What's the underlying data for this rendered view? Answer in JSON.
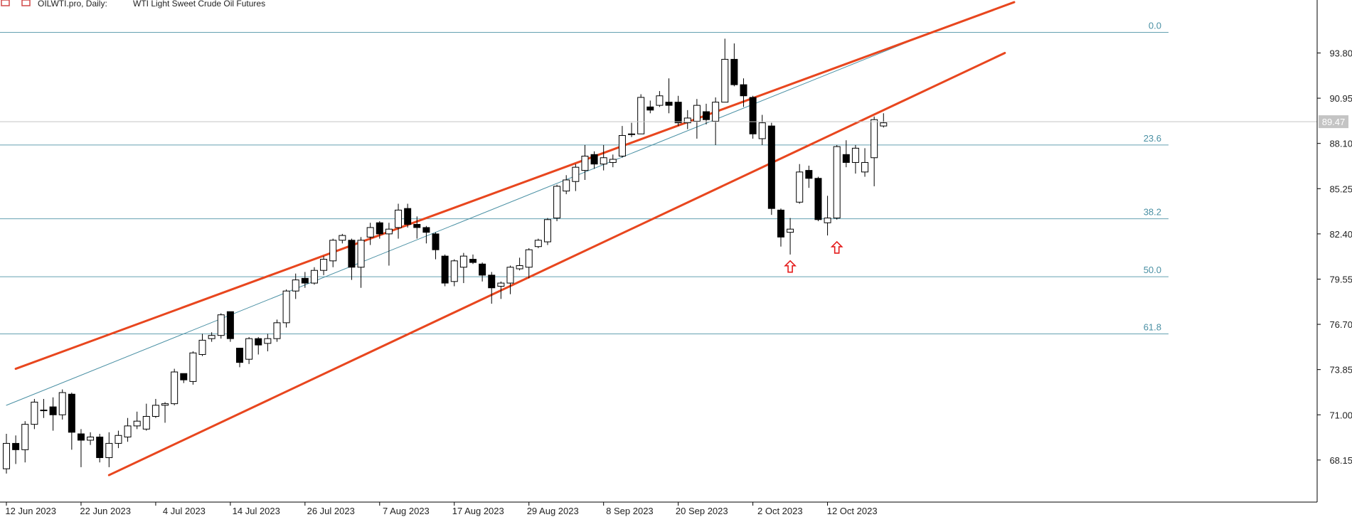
{
  "header": {
    "symbol": "OILWTI.pro, Daily:",
    "description": "WTI Light Sweet Crude Oil Futures"
  },
  "chart_data": {
    "type": "candlestick",
    "ylim": [
      65.5,
      96.6
    ],
    "y_ticks": [
      "93.80",
      "90.95",
      "88.10",
      "85.25",
      "82.40",
      "79.55",
      "76.70",
      "73.85",
      "71.00",
      "68.15"
    ],
    "current_price": "89.47",
    "x_labels": [
      {
        "bar": 0,
        "label": "12 Jun 2023"
      },
      {
        "bar": 8,
        "label": "22 Jun 2023"
      },
      {
        "bar": 16,
        "label": "4 Jul 2023"
      },
      {
        "bar": 24,
        "label": "14 Jul 2023"
      },
      {
        "bar": 32,
        "label": "26 Jul 2023"
      },
      {
        "bar": 40,
        "label": "7 Aug 2023"
      },
      {
        "bar": 48,
        "label": "17 Aug 2023"
      },
      {
        "bar": 56,
        "label": "29 Aug 2023"
      },
      {
        "bar": 64,
        "label": "8 Sep 2023"
      },
      {
        "bar": 72,
        "label": "20 Sep 2023"
      },
      {
        "bar": 80,
        "label": "2 Oct 2023"
      },
      {
        "bar": 88,
        "label": "12 Oct 2023"
      }
    ],
    "candles": [
      [
        67.6,
        69.2,
        67.3,
        69.8
      ],
      [
        69.2,
        68.8,
        67.9,
        69.7
      ],
      [
        68.8,
        70.4,
        68.0,
        70.6
      ],
      [
        70.4,
        71.8,
        70.1,
        72.0
      ],
      [
        71.3,
        71.3,
        70.8,
        72.0
      ],
      [
        71.5,
        71.0,
        70.0,
        72.1
      ],
      [
        71.0,
        72.4,
        70.7,
        72.6
      ],
      [
        72.3,
        69.9,
        68.8,
        72.4
      ],
      [
        69.8,
        69.4,
        67.7,
        70.1
      ],
      [
        69.4,
        69.6,
        69.1,
        69.9
      ],
      [
        69.6,
        68.3,
        68.0,
        69.8
      ],
      [
        68.3,
        69.2,
        67.7,
        69.9
      ],
      [
        69.2,
        69.7,
        68.9,
        70.0
      ],
      [
        69.6,
        70.3,
        69.3,
        70.8
      ],
      [
        70.3,
        70.6,
        70.1,
        71.2
      ],
      [
        70.1,
        70.9,
        70.0,
        71.7
      ],
      [
        70.9,
        71.6,
        70.8,
        72.0
      ],
      [
        71.6,
        71.7,
        70.5,
        71.8
      ],
      [
        71.7,
        73.7,
        71.6,
        73.9
      ],
      [
        73.6,
        73.2,
        73.0,
        73.6
      ],
      [
        73.1,
        74.9,
        72.9,
        75.0
      ],
      [
        74.8,
        75.7,
        74.7,
        76.1
      ],
      [
        75.8,
        76.0,
        75.6,
        76.2
      ],
      [
        76.0,
        77.3,
        75.8,
        77.4
      ],
      [
        77.5,
        75.8,
        75.6,
        77.5
      ],
      [
        75.2,
        74.3,
        74.0,
        75.2
      ],
      [
        74.5,
        75.8,
        74.2,
        75.9
      ],
      [
        75.8,
        75.4,
        74.8,
        75.9
      ],
      [
        75.5,
        75.8,
        75.0,
        76.1
      ],
      [
        75.8,
        76.8,
        75.6,
        77.0
      ],
      [
        76.8,
        78.8,
        76.5,
        78.9
      ],
      [
        78.8,
        79.5,
        78.3,
        79.9
      ],
      [
        79.6,
        79.3,
        79.0,
        80.0
      ],
      [
        79.3,
        80.1,
        79.2,
        80.3
      ],
      [
        80.1,
        80.8,
        79.8,
        81.0
      ],
      [
        80.7,
        82.0,
        80.3,
        82.1
      ],
      [
        82.0,
        82.3,
        81.8,
        82.4
      ],
      [
        82.0,
        80.3,
        79.5,
        82.1
      ],
      [
        80.3,
        82.0,
        79.0,
        82.2
      ],
      [
        82.2,
        82.8,
        81.7,
        83.1
      ],
      [
        83.1,
        82.4,
        82.1,
        83.2
      ],
      [
        82.4,
        82.7,
        80.4,
        83.1
      ],
      [
        82.8,
        83.9,
        82.1,
        84.3
      ],
      [
        84.0,
        83.0,
        82.8,
        84.3
      ],
      [
        83.0,
        82.8,
        82.1,
        83.5
      ],
      [
        82.8,
        82.5,
        81.8,
        82.9
      ],
      [
        82.4,
        81.4,
        80.8,
        82.5
      ],
      [
        81.0,
        79.3,
        79.1,
        81.1
      ],
      [
        79.4,
        80.7,
        79.1,
        80.8
      ],
      [
        80.3,
        81.0,
        79.3,
        81.2
      ],
      [
        80.8,
        80.6,
        80.5,
        81.1
      ],
      [
        80.5,
        79.8,
        79.4,
        80.6
      ],
      [
        79.8,
        79.0,
        78.0,
        80.0
      ],
      [
        79.1,
        79.3,
        78.3,
        79.4
      ],
      [
        79.3,
        80.3,
        78.6,
        80.4
      ],
      [
        80.2,
        80.4,
        80.1,
        80.9
      ],
      [
        80.3,
        81.4,
        79.6,
        81.5
      ],
      [
        81.6,
        82.0,
        81.5,
        82.1
      ],
      [
        81.9,
        83.3,
        81.7,
        83.4
      ],
      [
        83.4,
        85.4,
        83.2,
        85.5
      ],
      [
        85.1,
        85.8,
        84.9,
        86.1
      ],
      [
        85.7,
        86.6,
        85.1,
        86.8
      ],
      [
        86.4,
        87.3,
        85.8,
        88.0
      ],
      [
        87.4,
        86.8,
        86.5,
        87.6
      ],
      [
        86.8,
        87.2,
        86.4,
        88.0
      ],
      [
        86.9,
        87.1,
        86.6,
        87.4
      ],
      [
        87.3,
        88.6,
        87.2,
        89.2
      ],
      [
        88.7,
        88.7,
        88.5,
        89.4
      ],
      [
        88.7,
        91.0,
        88.7,
        91.2
      ],
      [
        90.4,
        90.2,
        90.0,
        90.8
      ],
      [
        90.5,
        91.1,
        90.4,
        91.4
      ],
      [
        90.7,
        90.5,
        90.0,
        92.2
      ],
      [
        90.7,
        89.4,
        89.2,
        91.1
      ],
      [
        89.4,
        89.7,
        89.0,
        90.2
      ],
      [
        89.5,
        90.5,
        88.4,
        90.9
      ],
      [
        90.1,
        89.6,
        89.3,
        90.6
      ],
      [
        89.5,
        90.7,
        88.0,
        91.0
      ],
      [
        90.7,
        93.4,
        90.7,
        94.7
      ],
      [
        93.4,
        91.8,
        91.7,
        94.4
      ],
      [
        91.8,
        91.1,
        90.4,
        92.2
      ],
      [
        91.0,
        88.7,
        88.4,
        91.1
      ],
      [
        88.4,
        89.4,
        88.0,
        89.9
      ],
      [
        89.2,
        84.0,
        83.6,
        89.4
      ],
      [
        83.9,
        82.2,
        81.6,
        84.0
      ],
      [
        82.5,
        82.7,
        81.1,
        83.4
      ],
      [
        84.4,
        86.3,
        84.3,
        86.8
      ],
      [
        86.4,
        85.9,
        85.3,
        86.7
      ],
      [
        85.9,
        83.3,
        83.2,
        86.0
      ],
      [
        83.1,
        83.4,
        82.3,
        84.8
      ],
      [
        83.4,
        87.9,
        83.3,
        88.0
      ],
      [
        87.4,
        86.9,
        86.6,
        88.3
      ],
      [
        86.9,
        87.8,
        86.2,
        88.0
      ],
      [
        86.3,
        86.9,
        86.0,
        87.8
      ],
      [
        87.2,
        89.6,
        85.4,
        89.8
      ],
      [
        89.2,
        89.4,
        89.1,
        90.0
      ]
    ],
    "fibonacci": [
      {
        "label": "0.0",
        "price": 95.1
      },
      {
        "label": "23.6",
        "price": 88.0
      },
      {
        "label": "38.2",
        "price": 83.35
      },
      {
        "label": "50.0",
        "price": 79.7
      },
      {
        "label": "61.8",
        "price": 76.1
      }
    ],
    "channel_upper": {
      "from": [
        1,
        73.9
      ],
      "to": [
        108,
        97.0
      ]
    },
    "channel_lower": {
      "from": [
        11,
        67.2
      ],
      "to": [
        107,
        93.8
      ]
    },
    "channel_mid": {
      "from": [
        0,
        71.6
      ],
      "to": [
        100,
        95.3
      ]
    },
    "arrows": [
      {
        "bar": 84,
        "price": 80.3
      },
      {
        "bar": 89,
        "price": 81.5
      }
    ],
    "colors": {
      "channel": "#e8461e",
      "fib": "#4a90a4",
      "arrow": "#e41b1b",
      "bull": "#ffffff",
      "bear": "#000000"
    }
  }
}
